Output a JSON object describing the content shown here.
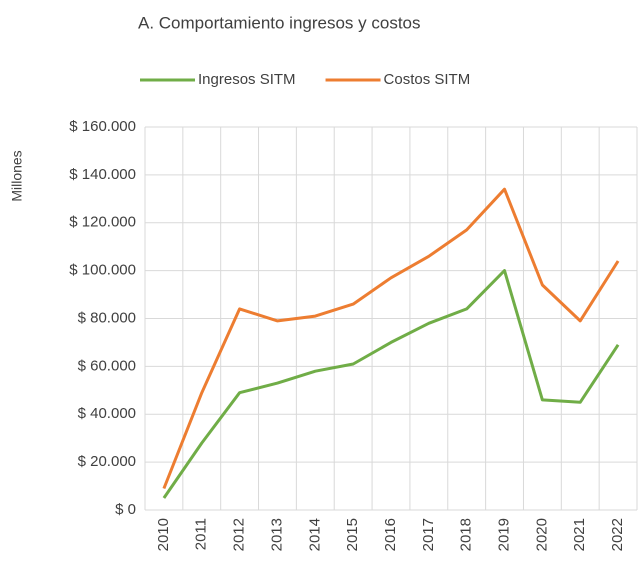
{
  "chart_data": {
    "type": "line",
    "title": "A. Comportamiento ingresos y costos",
    "y_label": "Millones",
    "categories": [
      "2010",
      "2011",
      "2012",
      "2013",
      "2014",
      "2015",
      "2016",
      "2017",
      "2018",
      "2019",
      "2020",
      "2021",
      "2022"
    ],
    "series": [
      {
        "name": "Ingresos SITM",
        "color": "#70ad47",
        "values": [
          5000,
          28000,
          49000,
          53000,
          58000,
          61000,
          70000,
          78000,
          84000,
          100000,
          46000,
          45000,
          69000
        ]
      },
      {
        "name": "Costos SITM",
        "color": "#ed7d31",
        "values": [
          9000,
          49000,
          84000,
          79000,
          81000,
          86000,
          97000,
          106000,
          117000,
          134000,
          94000,
          79000,
          104000
        ]
      }
    ],
    "ylim": [
      0,
      160000
    ],
    "yticks": [
      {
        "value": 0,
        "label": "$ 0"
      },
      {
        "value": 20000,
        "label": "$ 20.000"
      },
      {
        "value": 40000,
        "label": "$ 40.000"
      },
      {
        "value": 60000,
        "label": "$ 60.000"
      },
      {
        "value": 80000,
        "label": "$ 80.000"
      },
      {
        "value": 100000,
        "label": "$ 100.000"
      },
      {
        "value": 120000,
        "label": "$ 120.000"
      },
      {
        "value": 140000,
        "label": "$ 140.000"
      },
      {
        "value": 160000,
        "label": "$ 160.000"
      }
    ],
    "grid": true,
    "legend": "top"
  }
}
